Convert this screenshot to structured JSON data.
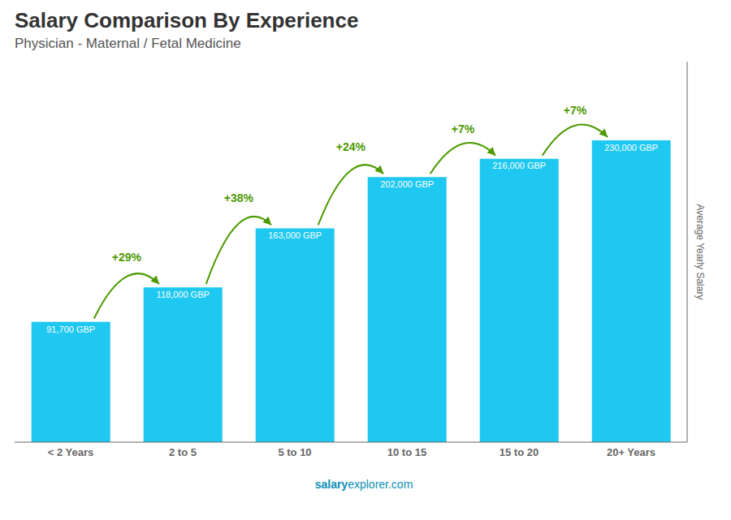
{
  "chart_data": {
    "type": "bar",
    "title": "Salary Comparison By Experience",
    "subtitle": "Physician - Maternal / Fetal Medicine",
    "categories": [
      "< 2 Years",
      "2 to 5",
      "5 to 10",
      "10 to 15",
      "15 to 20",
      "20+ Years"
    ],
    "values": [
      91700,
      118000,
      163000,
      202000,
      216000,
      230000
    ],
    "value_labels": [
      "91,700 GBP",
      "118,000 GBP",
      "163,000 GBP",
      "202,000 GBP",
      "216,000 GBP",
      "230,000 GBP"
    ],
    "data_labels": true,
    "color": "#1EC8F0",
    "y_label": "Average Yearly Salary",
    "ylim": [
      0,
      290000
    ],
    "grid": false,
    "tick_labels": "x",
    "annotations": [
      {
        "text": "+29%",
        "from": "< 2 Years",
        "to": "2 to 5"
      },
      {
        "text": "+38%",
        "from": "2 to 5",
        "to": "5 to 10"
      },
      {
        "text": "+24%",
        "from": "5 to 10",
        "to": "10 to 15"
      },
      {
        "text": "+7%",
        "from": "10 to 15",
        "to": "15 to 20"
      },
      {
        "text": "+7%",
        "from": "15 to 20",
        "to": "20+ Years"
      },
      {
        "text": "salary"
      },
      {
        "text": "explorer.com"
      }
    ]
  }
}
